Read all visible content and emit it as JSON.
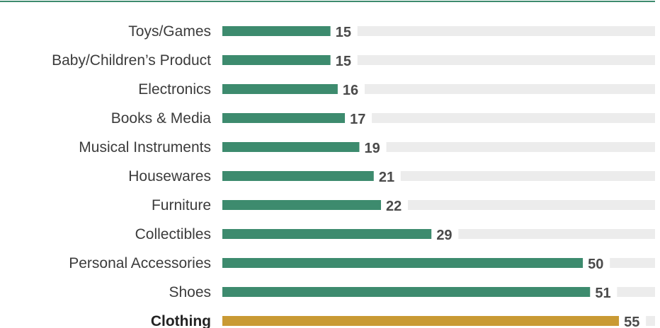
{
  "chart_data": {
    "type": "bar",
    "orientation": "horizontal",
    "categories": [
      "Toys/Games",
      "Baby/Children’s Product",
      "Electronics",
      "Books & Media",
      "Musical Instruments",
      "Housewares",
      "Furniture",
      "Collectibles",
      "Personal Accessories",
      "Shoes",
      "Clothing"
    ],
    "values": [
      15,
      15,
      16,
      17,
      19,
      21,
      22,
      29,
      50,
      51,
      55
    ],
    "highlight_category": "Clothing",
    "xlim": [
      0,
      60
    ],
    "title": "",
    "xlabel": "",
    "ylabel": "",
    "grid": false,
    "legend": "none",
    "colors": {
      "bar": "#3d8b6e",
      "highlight_bar": "#c99a34",
      "track": "#ececec",
      "top_rule": "#3d8b6e",
      "value_text": "#4a4a4a",
      "category_text": "#3b3b3b"
    }
  }
}
